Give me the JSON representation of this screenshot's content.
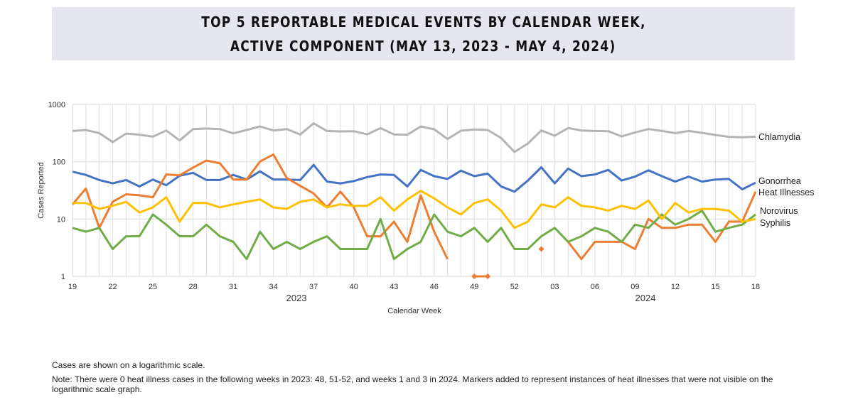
{
  "chart_data": {
    "type": "line",
    "title": [
      "TOP 5 REPORTABLE MEDICAL EVENTS BY CALENDAR WEEK,",
      "ACTIVE COMPONENT (MAY 13, 2023 - MAY 4, 2024)"
    ],
    "xlabel": "Calendar Week",
    "ylabel": "Cases Reported",
    "yscale": "log",
    "ylim": [
      1,
      1000
    ],
    "yticks": [
      "1",
      "10",
      "100",
      "1000"
    ],
    "grid": true,
    "x": [
      "19",
      "20",
      "21",
      "22",
      "23",
      "24",
      "25",
      "26",
      "27",
      "28",
      "29",
      "30",
      "31",
      "32",
      "33",
      "34",
      "35",
      "36",
      "37",
      "38",
      "39",
      "40",
      "41",
      "42",
      "43",
      "44",
      "45",
      "46",
      "47",
      "48",
      "49",
      "50",
      "51",
      "52",
      "01",
      "02",
      "03",
      "04",
      "05",
      "06",
      "07",
      "08",
      "09",
      "10",
      "11",
      "12",
      "13",
      "14",
      "15",
      "16",
      "17",
      "18"
    ],
    "xtick_labels": [
      "19",
      "22",
      "25",
      "28",
      "31",
      "34",
      "37",
      "40",
      "43",
      "46",
      "49",
      "52",
      "03",
      "06",
      "09",
      "12",
      "15",
      "18"
    ],
    "year_labels": [
      "2023",
      "2024"
    ],
    "series": [
      {
        "name": "Chlamydia",
        "color": "#b4b4b4",
        "values": [
          344,
          358,
          316,
          220,
          310,
          296,
          274,
          351,
          235,
          371,
          380,
          371,
          313,
          358,
          413,
          351,
          371,
          299,
          467,
          344,
          338,
          341,
          301,
          386,
          299,
          296,
          413,
          368,
          249,
          348,
          365,
          358,
          259,
          148,
          208,
          351,
          285,
          386,
          351,
          344,
          341,
          277,
          325,
          371,
          344,
          316,
          344,
          319,
          293,
          272,
          267,
          274
        ]
      },
      {
        "name": "Gonorrhea",
        "color": "#4472c4",
        "values": [
          67,
          59,
          48,
          42,
          48,
          37,
          49,
          39,
          57,
          64,
          48,
          48,
          59,
          49,
          68,
          49,
          49,
          48,
          88,
          45,
          42,
          46,
          54,
          60,
          59,
          37,
          72,
          56,
          50,
          70,
          56,
          62,
          37,
          30,
          47,
          80,
          42,
          76,
          56,
          60,
          72,
          47,
          55,
          71,
          56,
          45,
          55,
          45,
          49,
          50,
          33,
          43
        ]
      },
      {
        "name": "Heat Illnesses",
        "color": "#ed7d31",
        "values": [
          18,
          34,
          7,
          20,
          27,
          26,
          24,
          60,
          58,
          79,
          105,
          94,
          49,
          49,
          101,
          134,
          52,
          38,
          28,
          16,
          30,
          16,
          5,
          5,
          9,
          4,
          26,
          6,
          2,
          null,
          null,
          null,
          null,
          null,
          null,
          null,
          null,
          4,
          2,
          4,
          4,
          4,
          3,
          10,
          7,
          7,
          8,
          8,
          4,
          9,
          9,
          30
        ],
        "markers": [
          {
            "week": "49",
            "value": 1
          },
          {
            "week": "50",
            "value": 1
          },
          {
            "week": "02",
            "value": 3
          }
        ]
      },
      {
        "name": "Norovirus",
        "color": "#70ad47",
        "values": [
          7,
          6,
          7,
          3,
          5,
          5,
          12,
          8,
          5,
          5,
          8,
          5,
          4,
          2,
          6,
          3,
          4,
          3,
          4,
          5,
          3,
          3,
          3,
          10,
          2,
          3,
          4,
          12,
          6,
          5,
          7,
          4,
          7,
          3,
          3,
          5,
          7,
          4,
          5,
          7,
          6,
          4,
          8,
          7,
          12,
          8,
          10,
          14,
          6,
          7,
          8,
          12
        ]
      },
      {
        "name": "Syphilis",
        "color": "#ffc000",
        "values": [
          19,
          19,
          15,
          17,
          20,
          13,
          16,
          24,
          9,
          19,
          19,
          16,
          18,
          20,
          22,
          16,
          15,
          20,
          22,
          16,
          18,
          17,
          17,
          24,
          14,
          22,
          31,
          23,
          16,
          12,
          19,
          22,
          14,
          7,
          9,
          18,
          16,
          24,
          17,
          16,
          14,
          17,
          15,
          21,
          10,
          19,
          13,
          15,
          15,
          14,
          9,
          10
        ]
      }
    ]
  },
  "notes": {
    "scale": "Cases are shown on a logarithmic scale.",
    "zero_weeks": "Note: There were 0 heat illness cases in the following weeks in 2023: 48, 51-52, and weeks 1 and 3 in 2024. Markers added to represent instances of heat illnesses that were not visible on the logarithmic scale graph."
  }
}
